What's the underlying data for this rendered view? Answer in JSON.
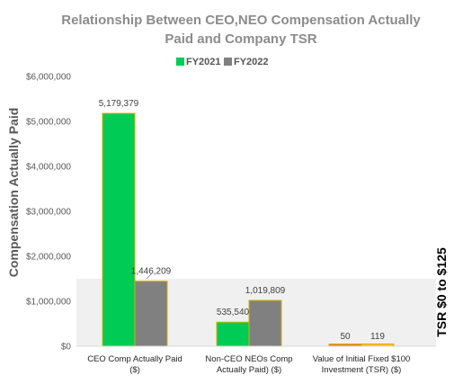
{
  "chart_data": {
    "type": "bar",
    "title_lines": [
      "Relationship Between CEO,NEO Compensation Actually",
      "Paid and Company TSR"
    ],
    "ylabel": "Compensation Actually Paid",
    "y2label": "TSR $0 to $125",
    "ylim": [
      0,
      6000000
    ],
    "yticks": [
      "$0",
      "$1,000,000",
      "$2,000,000",
      "$3,000,000",
      "$4,000,000",
      "$5,000,000",
      "$6,000,000"
    ],
    "categories": [
      [
        "CEO Comp Actually Paid",
        "($)"
      ],
      [
        "Non-CEO NEOs Comp",
        "Actually Paid) ($)"
      ],
      [
        "Value of Initial Fixed $100",
        "Investment (TSR) ($)"
      ]
    ],
    "series": [
      {
        "name": "FY2021",
        "color": "#00cc55",
        "values": [
          5179379,
          535540,
          50
        ],
        "labels": [
          "5,179,379",
          "535,540",
          "50"
        ]
      },
      {
        "name": "FY2022",
        "color": "#808080",
        "values": [
          1446209,
          1019809,
          119
        ],
        "labels": [
          "1,446,209",
          "1,019,809",
          "119"
        ]
      }
    ],
    "tsr_band": {
      "range": [
        0,
        125
      ],
      "color": "#f0f0f0"
    },
    "tsr_colors": [
      "#ed7d31",
      "#ffc000"
    ],
    "bar_border_color": "#d4b000",
    "legend_position": "top-center"
  }
}
